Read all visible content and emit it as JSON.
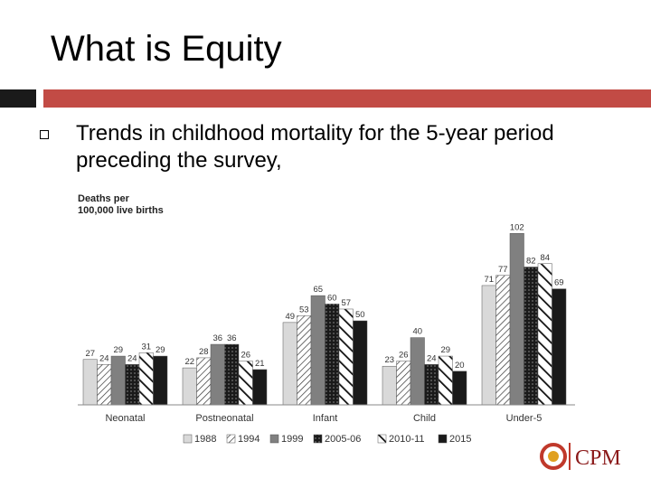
{
  "slide": {
    "title": "What is Equity",
    "bullet": "Trends in childhood mortality for the 5-year period preceding the survey,"
  },
  "chart_data": {
    "type": "bar",
    "ylabel_lines": [
      "Deaths per",
      "100,000 live births"
    ],
    "categories": [
      "Neonatal",
      "Postneonatal",
      "Infant",
      "Child",
      "Under-5"
    ],
    "ylim": [
      0,
      110
    ],
    "grid": false,
    "legend_position": "bottom",
    "series": [
      {
        "name": "1988",
        "values": [
          27,
          22,
          49,
          23,
          71
        ],
        "color": "#d9d9d9",
        "pattern": "solid-light"
      },
      {
        "name": "1994",
        "values": [
          24,
          28,
          53,
          26,
          77
        ],
        "color": "#ffffff",
        "pattern": "hatch-thin"
      },
      {
        "name": "1999",
        "values": [
          29,
          36,
          65,
          40,
          102
        ],
        "color": "#808080",
        "pattern": "solid-gray"
      },
      {
        "name": "2005-06",
        "values": [
          24,
          36,
          60,
          24,
          82
        ],
        "color": "#1a1a1a",
        "pattern": "dots"
      },
      {
        "name": "2010-11",
        "values": [
          31,
          26,
          57,
          29,
          84
        ],
        "color": "#ffffff",
        "pattern": "hatch-wide"
      },
      {
        "name": "2015",
        "values": [
          29,
          21,
          50,
          20,
          69
        ],
        "color": "#1a1a1a",
        "pattern": "solid-dark"
      }
    ]
  },
  "logo": {
    "text": "CPM"
  }
}
